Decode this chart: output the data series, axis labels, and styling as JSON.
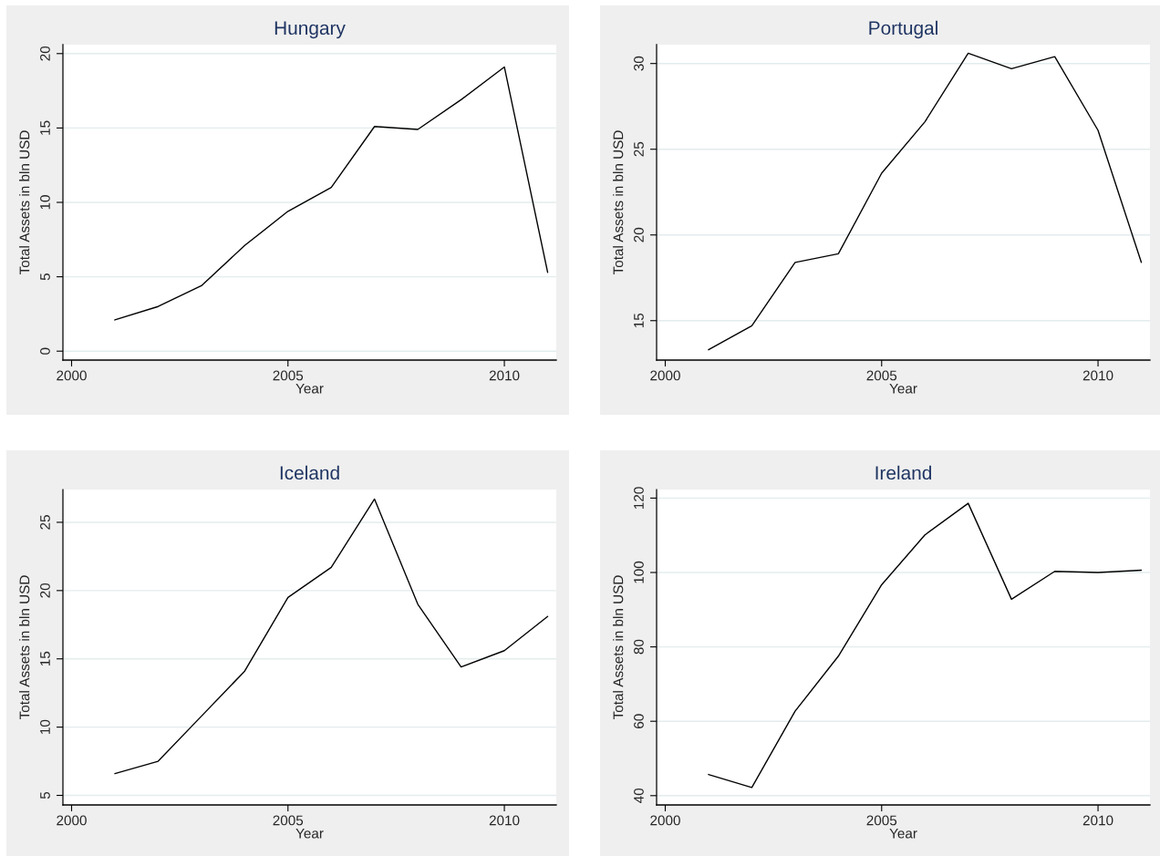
{
  "chart_data": [
    {
      "type": "line",
      "title": "Hungary",
      "xlabel": "Year",
      "ylabel": "Total Assets in bln USD",
      "x": [
        2001,
        2002,
        2003,
        2004,
        2005,
        2006,
        2007,
        2008,
        2009,
        2010,
        2011
      ],
      "series": [
        {
          "color": "#000000",
          "values": [
            2.1,
            3.0,
            4.4,
            7.1,
            9.4,
            11.0,
            15.1,
            14.9,
            16.9,
            19.1,
            5.3
          ]
        }
      ],
      "xlim": [
        1999.8,
        2011.2
      ],
      "ylim": [
        -0.6,
        20.6
      ],
      "xticks": [
        2000,
        2005,
        2010
      ],
      "yticks": [
        0,
        5,
        10,
        15,
        20
      ],
      "grid": "y"
    },
    {
      "type": "line",
      "title": "Portugal",
      "xlabel": "Year",
      "ylabel": "Total Assets in bln USD",
      "x": [
        2001,
        2002,
        2003,
        2004,
        2005,
        2006,
        2007,
        2008,
        2009,
        2010,
        2011
      ],
      "series": [
        {
          "color": "#000000",
          "values": [
            13.3,
            14.7,
            18.4,
            18.9,
            23.6,
            26.6,
            30.6,
            29.7,
            30.4,
            26.1,
            18.4
          ]
        }
      ],
      "xlim": [
        1999.8,
        2011.2
      ],
      "ylim": [
        12.7,
        31.1
      ],
      "xticks": [
        2000,
        2005,
        2010
      ],
      "yticks": [
        15,
        20,
        25,
        30
      ],
      "grid": "y"
    },
    {
      "type": "line",
      "title": "Iceland",
      "xlabel": "Year",
      "ylabel": "Total Assets in bln USD",
      "x": [
        2001,
        2002,
        2003,
        2004,
        2005,
        2006,
        2007,
        2008,
        2009,
        2010,
        2011
      ],
      "series": [
        {
          "color": "#000000",
          "values": [
            6.6,
            7.5,
            10.8,
            14.1,
            19.5,
            21.7,
            26.7,
            19.0,
            14.4,
            15.6,
            18.1
          ]
        }
      ],
      "xlim": [
        1999.8,
        2011.2
      ],
      "ylim": [
        4.3,
        27.4
      ],
      "xticks": [
        2000,
        2005,
        2010
      ],
      "yticks": [
        5,
        10,
        15,
        20,
        25
      ],
      "grid": "y"
    },
    {
      "type": "line",
      "title": "Ireland",
      "xlabel": "Year",
      "ylabel": "Total Assets in bln USD",
      "x": [
        2001,
        2002,
        2003,
        2004,
        2005,
        2006,
        2007,
        2008,
        2009,
        2010,
        2011
      ],
      "series": [
        {
          "color": "#000000",
          "values": [
            45.7,
            42.2,
            62.7,
            77.5,
            96.7,
            110.1,
            118.6,
            92.8,
            100.3,
            100.0,
            100.6
          ]
        }
      ],
      "xlim": [
        1999.8,
        2011.2
      ],
      "ylim": [
        37.5,
        122.3
      ],
      "xticks": [
        2000,
        2005,
        2010
      ],
      "yticks": [
        40,
        60,
        80,
        100,
        120
      ],
      "grid": "y"
    }
  ]
}
